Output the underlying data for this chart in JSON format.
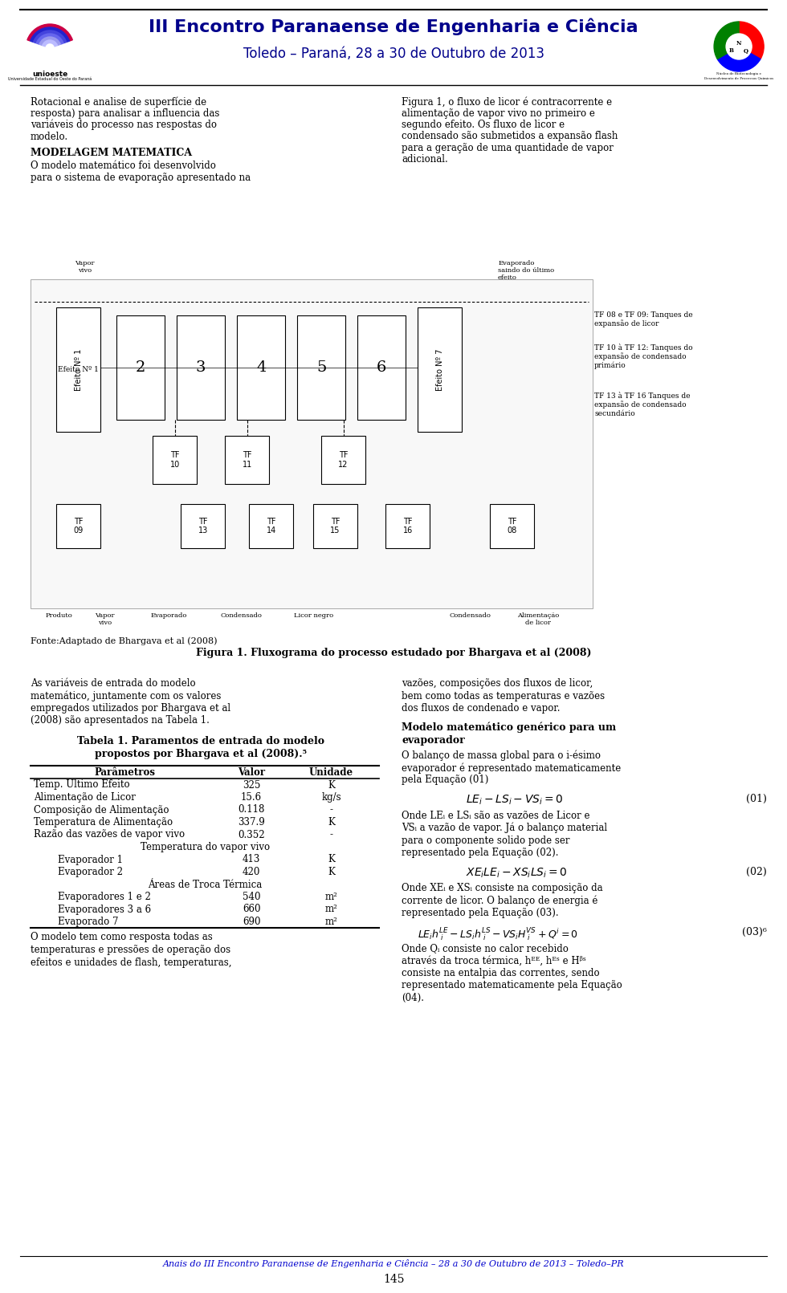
{
  "title1": "III Encontro Paranaense de Engenharia e Ciência",
  "title2": "Toledo – Paraná, 28 a 30 de Outubro de 2013",
  "col1_para1_lines": [
    "Rotacional e analise de superfície de",
    "resposta) para analisar a influencia das",
    "variáveis do processo nas respostas do",
    "modelo."
  ],
  "col1_head": "MODELAGEM MATEMATICA",
  "col1_para2_lines": [
    "O modelo matemático foi desenvolvido",
    "para o sistema de evaporação apresentado na"
  ],
  "col2_para1_lines": [
    "Figura 1, o fluxo de licor é contracorrente e",
    "alimentação de vapor vivo no primeiro e",
    "segundo efeito. Os fluxo de licor e",
    "condensado são submetidos a expansão flash",
    "para a geração de uma quantidade de vapor",
    "adicional."
  ],
  "fonte_text": "Fonte:Adaptado de Bhargava et al (2008)",
  "fig_caption": "Figura 1. Fluxograma do processo estudado por Bhargava et al (2008)",
  "section_as_lines": [
    "As variáveis de entrada do modelo",
    "matemático, juntamente com os valores",
    "empregados utilizados por Bhargava et al",
    "(2008) são apresentados na Tabela 1."
  ],
  "section_col2_1_lines": [
    "vazões, composições dos fluxos de licor,",
    "bem como todas as temperaturas e vazões",
    "dos fluxos de condenado e vapor."
  ],
  "section_col2_head_lines": [
    "Modelo matemático genérico para um",
    "evaporador"
  ],
  "section_col2_2_lines": [
    "O balanço de massa global para o i-ésimo",
    "evaporador é representado matematicamente",
    "pela Equação (01)"
  ],
  "eq01_desc_lines": [
    "Onde LEᵢ e LSᵢ são as vazões de Licor e",
    "VSᵢ a vazão de vapor. Já o balanço material",
    "para o componente solido pode ser",
    "representado pela Equação (02)."
  ],
  "eq02_desc_lines": [
    "Onde XEᵢ e XSᵢ consiste na composição da",
    "corrente de licor. O balanço de energia é",
    "representado pela Equação (03)."
  ],
  "eq03_desc_lines": [
    "Onde Qᵢ consiste no calor recebido",
    "através da troca térmica, hᴱᴱ, hᴱˢ e Hᵝˢ",
    "consiste na entalpia das correntes, sendo",
    "representado matematicamente pela Equação",
    "(04)."
  ],
  "col1_bottom_lines": [
    "O modelo tem como resposta todas as",
    "temperaturas e pressões de operação dos",
    "efeitos e unidades de flash, temperaturas,"
  ],
  "footer": "Anais do III Encontro Paranaense de Engenharia e Ciência – 28 a 30 de Outubro de 2013 – Toledo–PR",
  "page_num": "145",
  "table_title_lines": [
    "Tabela 1. Paramentos de entrada do modelo",
    "propostos por Bhargava et al (2008).⁵"
  ],
  "table_headers": [
    "Parâmetros",
    "Valor",
    "Unidade"
  ],
  "table_rows": [
    [
      "Temp. Ultimo Efeito",
      "325",
      "K"
    ],
    [
      "Alimentação de Licor",
      "15.6",
      "kg/s"
    ],
    [
      "Composição de Alimentação",
      "0.118",
      "-"
    ],
    [
      "Temperatura de Alimentação",
      "337.9",
      "K"
    ],
    [
      "Razão das vazões de vapor vivo",
      "0.352",
      "-"
    ],
    [
      "Temperatura do vapor vivo",
      "",
      ""
    ],
    [
      "Evaporador 1",
      "413",
      "K"
    ],
    [
      "Evaporador 2",
      "420",
      "K"
    ],
    [
      "Áreas de Troca Térmica",
      "",
      ""
    ],
    [
      "Evaporadores 1 e 2",
      "540",
      "m²"
    ],
    [
      "Evaporadores 3 a 6",
      "660",
      "m²"
    ],
    [
      "Evaporado 7",
      "690",
      "m²"
    ]
  ],
  "bg_color": "#ffffff",
  "text_color": "#000000",
  "footer_color": "#0000CD",
  "title_color": "#00008B"
}
